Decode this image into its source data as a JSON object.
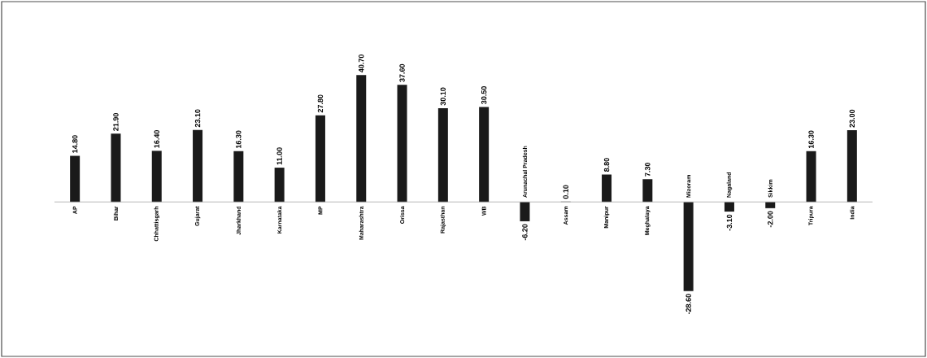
{
  "chart_data": {
    "type": "bar",
    "relative": false,
    "categories": [
      "AP",
      "Bihar",
      "Chhattisgarh",
      "Gujarat",
      "Jharkhand",
      "Karnataka",
      "MP",
      "Maharashtra",
      "Orissa",
      "Rajasthan",
      "WB",
      "Arunachal Pradesh",
      "Assam",
      "Manipur",
      "Meghalaya",
      "Mizoram",
      "Nagaland",
      "Sikkim",
      "Tripura",
      "India"
    ],
    "values": [
      14.8,
      21.9,
      16.4,
      23.1,
      16.3,
      11.0,
      27.8,
      40.7,
      37.6,
      30.1,
      30.5,
      -6.2,
      0.1,
      8.8,
      7.3,
      -28.6,
      -3.1,
      -2.0,
      16.3,
      23.0
    ],
    "value_labels": [
      "14.80",
      "21.90",
      "16.40",
      "23.10",
      "16.30",
      "11.00",
      "27.80",
      "40.70",
      "37.60",
      "30.10",
      "30.50",
      "-6.20",
      "0.10",
      "8.80",
      "7.30",
      "-28.60",
      "-3.10",
      "-2.00",
      "16.30",
      "23.00"
    ],
    "color": "#1a1a1a"
  }
}
